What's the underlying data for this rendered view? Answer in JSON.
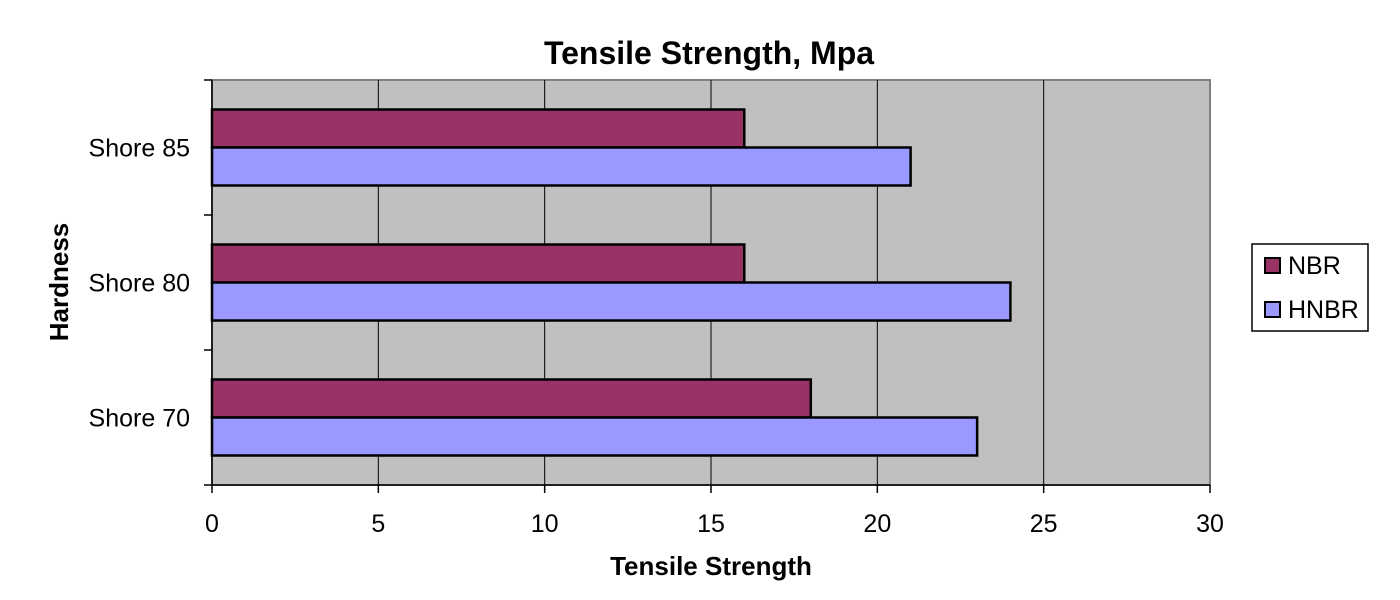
{
  "chart_data": {
    "type": "bar",
    "orientation": "horizontal",
    "title": "Tensile Strength, Mpa",
    "xlabel": "Tensile Strength",
    "ylabel": "Hardness",
    "categories": [
      "Shore 85",
      "Shore 80",
      "Shore 70"
    ],
    "series": [
      {
        "name": "NBR",
        "values": [
          16,
          16,
          18
        ],
        "color": "#993366"
      },
      {
        "name": "HNBR",
        "values": [
          21,
          24,
          23
        ],
        "color": "#9999ff"
      }
    ],
    "xlim": [
      0,
      30
    ],
    "x_ticks": [
      0,
      5,
      10,
      15,
      20,
      25,
      30
    ],
    "grid": true,
    "plot_background": "#c0c0c0",
    "legend_position": "right"
  }
}
